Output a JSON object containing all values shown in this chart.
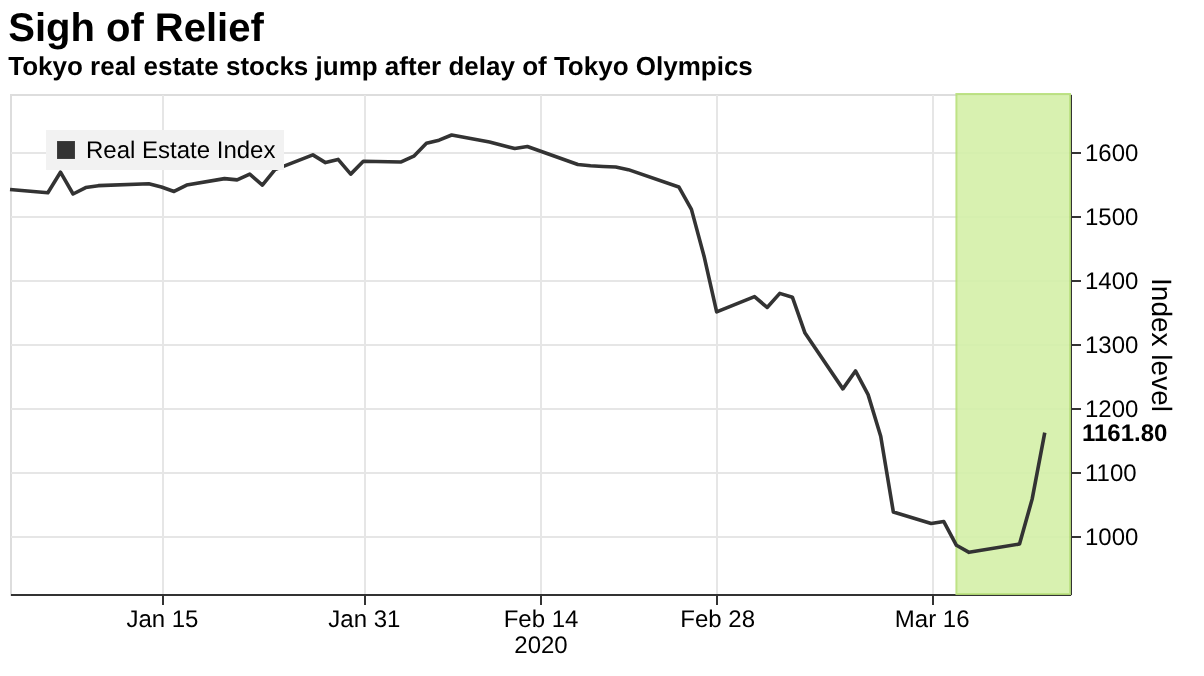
{
  "chart_data": {
    "type": "line",
    "title": "Sigh of Relief",
    "subtitle": "Tokyo real estate stocks jump after delay of Tokyo Olympics",
    "xlabel": "2020",
    "ylabel": "Index level",
    "x": [
      "2020-01-03",
      "2020-01-06",
      "2020-01-07",
      "2020-01-08",
      "2020-01-09",
      "2020-01-10",
      "2020-01-14",
      "2020-01-15",
      "2020-01-16",
      "2020-01-17",
      "2020-01-20",
      "2020-01-21",
      "2020-01-22",
      "2020-01-23",
      "2020-01-24",
      "2020-01-27",
      "2020-01-28",
      "2020-01-29",
      "2020-01-30",
      "2020-01-31",
      "2020-02-03",
      "2020-02-04",
      "2020-02-05",
      "2020-02-06",
      "2020-02-07",
      "2020-02-10",
      "2020-02-12",
      "2020-02-13",
      "2020-02-14",
      "2020-02-17",
      "2020-02-18",
      "2020-02-19",
      "2020-02-20",
      "2020-02-21",
      "2020-02-25",
      "2020-02-26",
      "2020-02-27",
      "2020-02-28",
      "2020-03-02",
      "2020-03-03",
      "2020-03-04",
      "2020-03-05",
      "2020-03-06",
      "2020-03-09",
      "2020-03-10",
      "2020-03-11",
      "2020-03-12",
      "2020-03-13",
      "2020-03-16",
      "2020-03-17",
      "2020-03-18",
      "2020-03-19",
      "2020-03-23",
      "2020-03-24",
      "2020-03-25"
    ],
    "series": [
      {
        "name": "Real Estate Index",
        "color": "#333333",
        "values": [
          1541,
          1536,
          1568,
          1534,
          1544,
          1547,
          1550,
          1545,
          1538,
          1548,
          1558,
          1556,
          1565,
          1548,
          1572,
          1595,
          1583,
          1588,
          1565,
          1585,
          1584,
          1593,
          1613,
          1618,
          1626,
          1615,
          1605,
          1608,
          1601,
          1580,
          1578,
          1577,
          1576,
          1572,
          1545,
          1510,
          1437,
          1350,
          1374,
          1357,
          1379,
          1373,
          1317,
          1230,
          1258,
          1221,
          1156,
          1038,
          1020,
          1023,
          986,
          975,
          988,
          1058,
          1161.8
        ],
        "value_labels": [
          null,
          null,
          null,
          null,
          null,
          null,
          null,
          null,
          null,
          null,
          null,
          null,
          null,
          null,
          null,
          null,
          null,
          null,
          null,
          null,
          null,
          null,
          null,
          null,
          null,
          null,
          null,
          null,
          null,
          null,
          null,
          null,
          null,
          null,
          null,
          null,
          null,
          null,
          null,
          null,
          null,
          null,
          null,
          null,
          null,
          null,
          null,
          null,
          null,
          null,
          null,
          null,
          null,
          null,
          "1161.80"
        ]
      }
    ],
    "xlim": [
      "2020-01-03",
      "2020-03-27"
    ],
    "xticks": [
      {
        "value": "2020-01-15",
        "label": "Jan 15"
      },
      {
        "value": "2020-01-31",
        "label": "Jan 31"
      },
      {
        "value": "2020-02-14",
        "label": "Feb 14"
      },
      {
        "value": "2020-02-28",
        "label": "Feb 28"
      },
      {
        "value": "2020-03-16",
        "label": "Mar 16"
      }
    ],
    "ylim": [
      910,
      1690
    ],
    "yticks": [
      1000,
      1100,
      1200,
      1300,
      1400,
      1500,
      1600
    ],
    "bands": [
      {
        "axis": "x",
        "from": "2020-03-18",
        "to": "2020-03-27",
        "color": "#d4f0a8"
      }
    ],
    "grid": true,
    "legend": "top left",
    "marker": "none",
    "line_style": "solid"
  }
}
